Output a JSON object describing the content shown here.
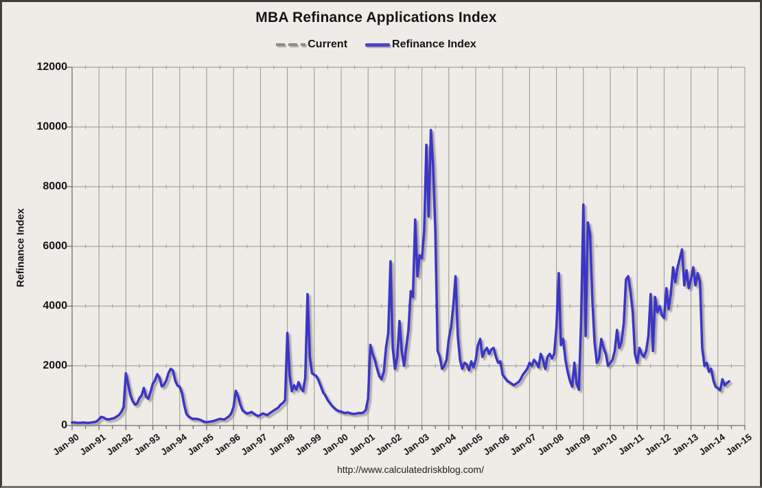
{
  "chart_data": {
    "type": "line",
    "title": "MBA Refinance Applications Index",
    "xlabel": "",
    "ylabel": "Refinance Index",
    "ylim": [
      0,
      12000
    ],
    "y_ticks": [
      0,
      2000,
      4000,
      6000,
      8000,
      10000,
      12000
    ],
    "x_ticks": [
      "Jan-90",
      "Jan-91",
      "Jan-92",
      "Jan-93",
      "Jan-94",
      "Jan-95",
      "Jan-96",
      "Jan-97",
      "Jan-98",
      "Jan-99",
      "Jan-00",
      "Jan-01",
      "Jan-02",
      "Jan-03",
      "Jan-04",
      "Jan-05",
      "Jan-06",
      "Jan-07",
      "Jan-08",
      "Jan-09",
      "Jan-10",
      "Jan-11",
      "Jan-12",
      "Jan-13",
      "Jan-14",
      "Jan-15"
    ],
    "x_range_years": [
      1990,
      2015
    ],
    "grid": "major-both",
    "legend_position": "top-center",
    "series": [
      {
        "name": "Current",
        "style": "dashed-horizontal-line",
        "color": "#8c8c8c",
        "value": 1480,
        "start_year": 2008.87,
        "end_year": 2014.95
      },
      {
        "name": "Refinance Index",
        "style": "solid-line",
        "color": "#3b36c8",
        "start_year": 1990,
        "points_per_year": 12,
        "values": [
          100,
          105,
          95,
          90,
          95,
          100,
          95,
          90,
          95,
          105,
          115,
          140,
          210,
          290,
          270,
          225,
          205,
          215,
          235,
          255,
          305,
          360,
          460,
          620,
          1750,
          1380,
          1020,
          820,
          700,
          730,
          910,
          1010,
          1260,
          960,
          900,
          1120,
          1400,
          1520,
          1720,
          1600,
          1310,
          1360,
          1510,
          1760,
          1900,
          1840,
          1500,
          1340,
          1300,
          1090,
          690,
          390,
          300,
          250,
          220,
          230,
          215,
          195,
          160,
          125,
          115,
          125,
          135,
          150,
          175,
          200,
          225,
          210,
          205,
          255,
          310,
          410,
          620,
          1160,
          980,
          700,
          510,
          450,
          400,
          420,
          455,
          405,
          350,
          320,
          355,
          405,
          380,
          350,
          405,
          455,
          505,
          555,
          605,
          700,
          755,
          850,
          3100,
          1700,
          1150,
          1350,
          1200,
          1450,
          1250,
          1150,
          1600,
          4400,
          2300,
          1750,
          1700,
          1650,
          1500,
          1300,
          1100,
          1000,
          850,
          750,
          650,
          580,
          520,
          480,
          470,
          430,
          420,
          440,
          410,
          395,
          390,
          405,
          420,
          415,
          440,
          520,
          900,
          2700,
          2400,
          2200,
          1900,
          1650,
          1550,
          1800,
          2600,
          3100,
          5500,
          2600,
          1900,
          2300,
          3500,
          2500,
          2000,
          2600,
          3200,
          4500,
          4300,
          6900,
          5000,
          5700,
          5600,
          6500,
          9400,
          7000,
          9900,
          8700,
          6500,
          2500,
          2300,
          1900,
          2000,
          2200,
          2900,
          3300,
          4000,
          5000,
          3000,
          2200,
          1900,
          2100,
          2050,
          1850,
          2150,
          1950,
          2200,
          2700,
          2900,
          2300,
          2500,
          2600,
          2400,
          2550,
          2600,
          2300,
          2100,
          2150,
          1700,
          1600,
          1500,
          1450,
          1400,
          1350,
          1400,
          1450,
          1550,
          1700,
          1800,
          1900,
          2100,
          2000,
          2200,
          2100,
          1950,
          2400,
          2200,
          1900,
          2300,
          2400,
          2250,
          2400,
          3300,
          5100,
          2700,
          2900,
          2200,
          1800,
          1500,
          1300,
          2100,
          1400,
          1200,
          3500,
          7400,
          3000,
          6800,
          6400,
          4200,
          2800,
          2100,
          2250,
          2900,
          2600,
          2400,
          2000,
          2100,
          2200,
          2500,
          3200,
          2600,
          2800,
          3400,
          4900,
          5000,
          4500,
          3800,
          2400,
          2100,
          2600,
          2400,
          2300,
          2500,
          3000,
          4400,
          2500,
          4300,
          3800,
          4000,
          3700,
          3600,
          4600,
          3900,
          4400,
          5300,
          4800,
          5300,
          5600,
          5900,
          4700,
          5200,
          4600,
          4900,
          5300,
          4700,
          5100,
          4800,
          2600,
          2000,
          2100,
          1800,
          1900,
          1500,
          1300,
          1250,
          1180,
          1550,
          1350,
          1420,
          1480
        ]
      }
    ],
    "colors": {
      "background": "#efece8",
      "gridline": "#96918a",
      "axis": "#6f6b65",
      "refinance_line": "#3b36c8",
      "current_line": "#8c8c8c",
      "text": "#141414"
    }
  },
  "footer": {
    "url": "http://www.calculatedriskblog.com/"
  }
}
